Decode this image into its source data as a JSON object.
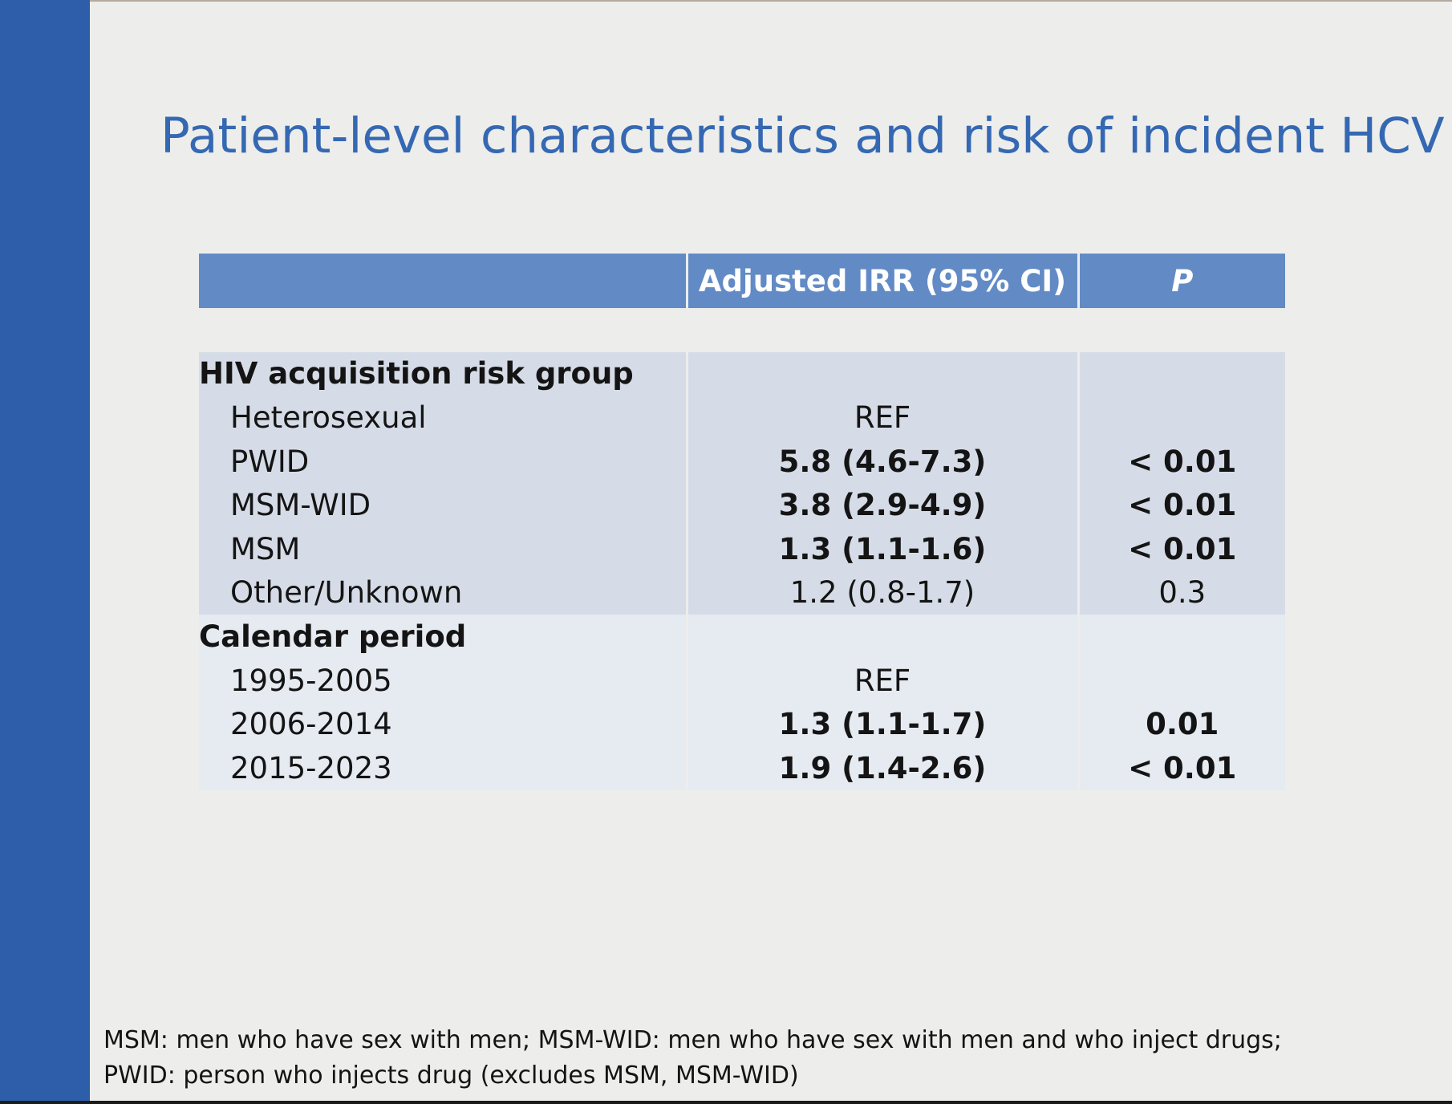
{
  "slide": {
    "title": "Patient-level characteristics and risk of incident HCV"
  },
  "table": {
    "headers": [
      "",
      "Adjusted IRR (95% CI)",
      "P"
    ],
    "groups": [
      {
        "name": "HIV acquisition risk group",
        "rows": [
          {
            "label": "Heterosexual",
            "irr": "REF",
            "p": "",
            "bold": false
          },
          {
            "label": "PWID",
            "irr": "5.8 (4.6-7.3)",
            "p": "< 0.01",
            "bold": true
          },
          {
            "label": "MSM-WID",
            "irr": "3.8 (2.9-4.9)",
            "p": "< 0.01",
            "bold": true
          },
          {
            "label": "MSM",
            "irr": "1.3 (1.1-1.6)",
            "p": "< 0.01",
            "bold": true
          },
          {
            "label": "Other/Unknown",
            "irr": "1.2 (0.8-1.7)",
            "p": "0.3",
            "bold": false
          }
        ]
      },
      {
        "name": "Calendar period",
        "rows": [
          {
            "label": "1995-2005",
            "irr": "REF",
            "p": "",
            "bold": false
          },
          {
            "label": "2006-2014",
            "irr": "1.3 (1.1-1.7)",
            "p": "0.01",
            "bold": true
          },
          {
            "label": "2015-2023",
            "irr": "1.9 (1.4-2.6)",
            "p": "< 0.01",
            "bold": true
          }
        ]
      }
    ]
  },
  "footnote": {
    "line1": "MSM: men who have sex with men; MSM-WID: men who have sex with men and who inject drugs;",
    "line2": "PWID: person who injects drug (excludes MSM, MSM-WID)"
  },
  "colors": {
    "sidebar": "#2e5ea9",
    "title": "#3568b3",
    "header_bg": "#628bc6",
    "group1_bg": "#d6dce7",
    "group2_bg": "#e6eaf1",
    "background": "#ededeb"
  }
}
